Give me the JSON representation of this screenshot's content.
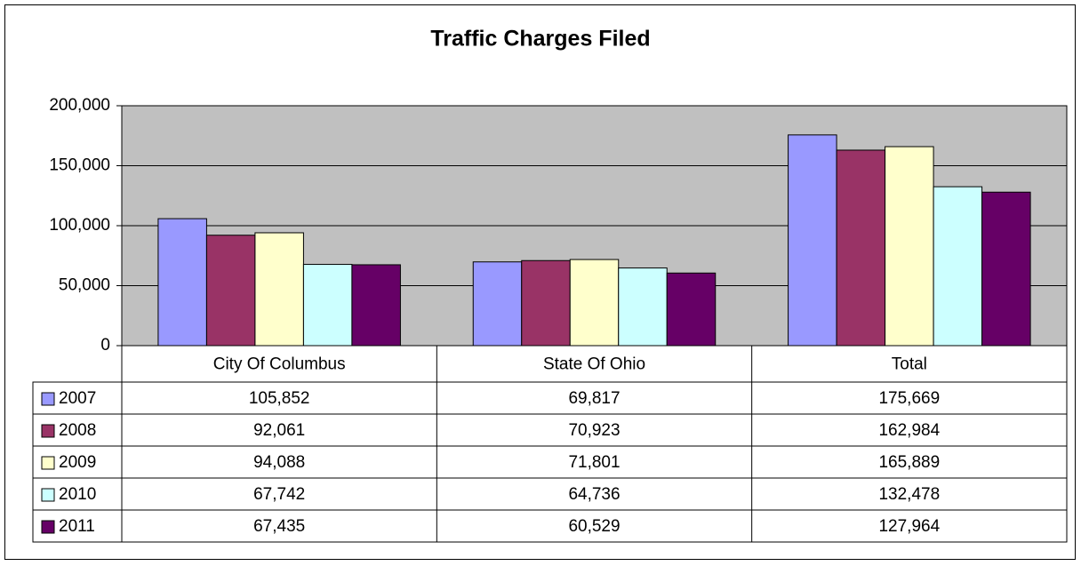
{
  "chart_data": {
    "type": "bar",
    "title": "Traffic Charges Filed",
    "categories": [
      "City Of Columbus",
      "State Of Ohio",
      "Total"
    ],
    "series": [
      {
        "name": "2007",
        "color": "#9999ff",
        "values": [
          105852,
          69817,
          175669
        ],
        "value_labels": [
          "105,852",
          "69,817",
          "175,669"
        ]
      },
      {
        "name": "2008",
        "color": "#993366",
        "values": [
          92061,
          70923,
          162984
        ],
        "value_labels": [
          "92,061",
          "70,923",
          "162,984"
        ]
      },
      {
        "name": "2009",
        "color": "#ffffcc",
        "values": [
          94088,
          71801,
          165889
        ],
        "value_labels": [
          "94,088",
          "71,801",
          "165,889"
        ]
      },
      {
        "name": "2010",
        "color": "#ccffff",
        "values": [
          67742,
          64736,
          132478
        ],
        "value_labels": [
          "67,742",
          "64,736",
          "132,478"
        ]
      },
      {
        "name": "2011",
        "color": "#660066",
        "values": [
          67435,
          60529,
          127964
        ],
        "value_labels": [
          "67,435",
          "60,529",
          "127,964"
        ]
      }
    ],
    "ylim": [
      0,
      200000
    ],
    "yticks": [
      0,
      {
        "value": 50000,
        "label": "50,000"
      },
      {
        "value": 100000,
        "label": "100,000"
      },
      {
        "value": 150000,
        "label": "150,000"
      },
      {
        "value": 200000,
        "label": "200,000"
      }
    ],
    "grid": true,
    "plot_background": "#c0c0c0"
  }
}
